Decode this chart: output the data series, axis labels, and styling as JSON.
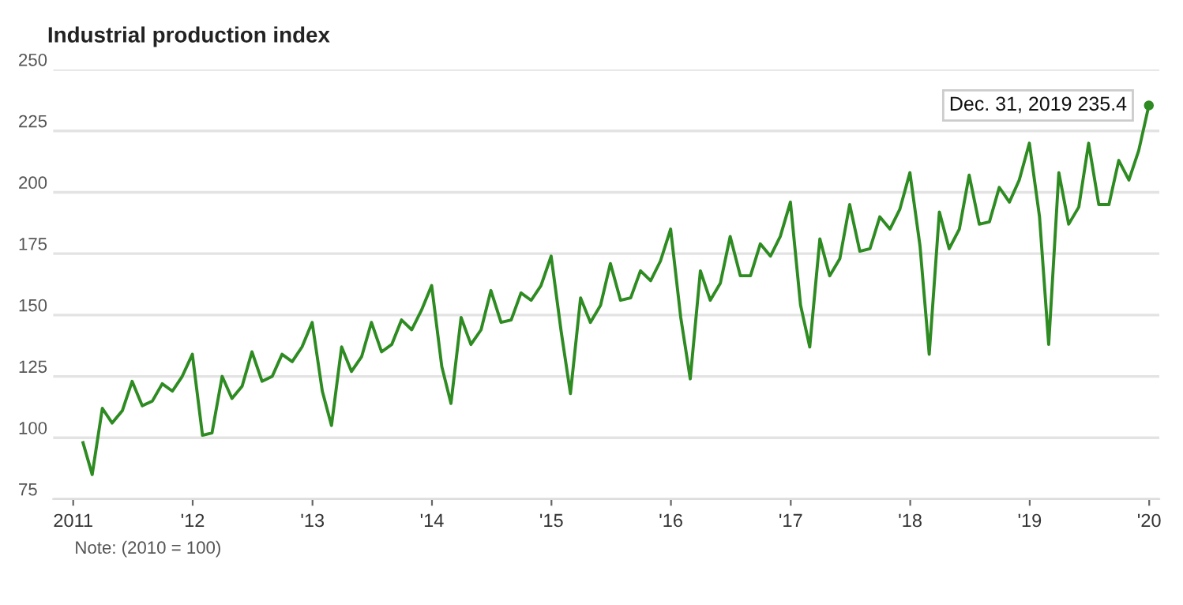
{
  "chart_data": {
    "type": "line",
    "title": "Industrial production index",
    "x": [
      "2011-01-31",
      "2011-02-28",
      "2011-03-31",
      "2011-04-30",
      "2011-05-31",
      "2011-06-30",
      "2011-07-31",
      "2011-08-31",
      "2011-09-30",
      "2011-10-31",
      "2011-11-30",
      "2011-12-31",
      "2012-01-31",
      "2012-02-29",
      "2012-03-31",
      "2012-04-30",
      "2012-05-31",
      "2012-06-30",
      "2012-07-31",
      "2012-08-31",
      "2012-09-30",
      "2012-10-31",
      "2012-11-30",
      "2012-12-31",
      "2013-01-31",
      "2013-02-28",
      "2013-03-31",
      "2013-04-30",
      "2013-05-31",
      "2013-06-30",
      "2013-07-31",
      "2013-08-31",
      "2013-09-30",
      "2013-10-31",
      "2013-11-30",
      "2013-12-31",
      "2014-01-31",
      "2014-02-28",
      "2014-03-31",
      "2014-04-30",
      "2014-05-31",
      "2014-06-30",
      "2014-07-31",
      "2014-08-31",
      "2014-09-30",
      "2014-10-31",
      "2014-11-30",
      "2014-12-31",
      "2015-01-31",
      "2015-02-28",
      "2015-03-31",
      "2015-04-30",
      "2015-05-31",
      "2015-06-30",
      "2015-07-31",
      "2015-08-31",
      "2015-09-30",
      "2015-10-31",
      "2015-11-30",
      "2015-12-31",
      "2016-01-31",
      "2016-02-29",
      "2016-03-31",
      "2016-04-30",
      "2016-05-31",
      "2016-06-30",
      "2016-07-31",
      "2016-08-31",
      "2016-09-30",
      "2016-10-31",
      "2016-11-30",
      "2016-12-31",
      "2017-01-31",
      "2017-02-28",
      "2017-03-31",
      "2017-04-30",
      "2017-05-31",
      "2017-06-30",
      "2017-07-31",
      "2017-08-31",
      "2017-09-30",
      "2017-10-31",
      "2017-11-30",
      "2017-12-31",
      "2018-01-31",
      "2018-02-28",
      "2018-03-31",
      "2018-04-30",
      "2018-05-31",
      "2018-06-30",
      "2018-07-31",
      "2018-08-31",
      "2018-09-30",
      "2018-10-31",
      "2018-11-30",
      "2018-12-31",
      "2019-01-31",
      "2019-02-28",
      "2019-03-31",
      "2019-04-30",
      "2019-05-31",
      "2019-06-30",
      "2019-07-31",
      "2019-08-31",
      "2019-09-30",
      "2019-10-31",
      "2019-11-30",
      "2019-12-31"
    ],
    "series": [
      {
        "color": "#2e8b22",
        "values": [
          98,
          85,
          112,
          106,
          111,
          123,
          113,
          115,
          122,
          119,
          125,
          134,
          101,
          102,
          125,
          116,
          121,
          135,
          123,
          125,
          134,
          131,
          137,
          147,
          119,
          105,
          137,
          127,
          133,
          147,
          135,
          138,
          148,
          144,
          152,
          162,
          129,
          114,
          149,
          138,
          144,
          160,
          147,
          148,
          159,
          156,
          162,
          174,
          143,
          118,
          157,
          147,
          154,
          171,
          156,
          157,
          168,
          164,
          172,
          185,
          149,
          124,
          168,
          156,
          163,
          182,
          166,
          166,
          179,
          174,
          182,
          196,
          154,
          137,
          181,
          166,
          173,
          195,
          176,
          177,
          190,
          185,
          193,
          208,
          178,
          134,
          192,
          177,
          185,
          207,
          187,
          188,
          202,
          196,
          205,
          220,
          190,
          138,
          208,
          187,
          194,
          220,
          195,
          195,
          213,
          205,
          217,
          235.4
        ]
      }
    ],
    "xlim": [
      "2010-11-01",
      "2020-02-01"
    ],
    "xticks": [
      {
        "value": "2011-01-01",
        "label": "2011"
      },
      {
        "value": "2012-01-01",
        "label": "'12"
      },
      {
        "value": "2013-01-01",
        "label": "'13"
      },
      {
        "value": "2014-01-01",
        "label": "'14"
      },
      {
        "value": "2015-01-01",
        "label": "'15"
      },
      {
        "value": "2016-01-01",
        "label": "'16"
      },
      {
        "value": "2017-01-01",
        "label": "'17"
      },
      {
        "value": "2018-01-01",
        "label": "'18"
      },
      {
        "value": "2019-01-01",
        "label": "'19"
      },
      {
        "value": "2020-01-01",
        "label": "'20"
      }
    ],
    "ylim": [
      75,
      250
    ],
    "yticks": [
      75,
      100,
      125,
      150,
      175,
      200,
      225,
      250
    ],
    "grid": "y",
    "legend": false,
    "annotations": [
      {
        "text": "Dec. 31, 2019 235.4",
        "x": "2019-12-31",
        "y": 235.4
      },
      "Note: (2010 = 100)"
    ]
  }
}
